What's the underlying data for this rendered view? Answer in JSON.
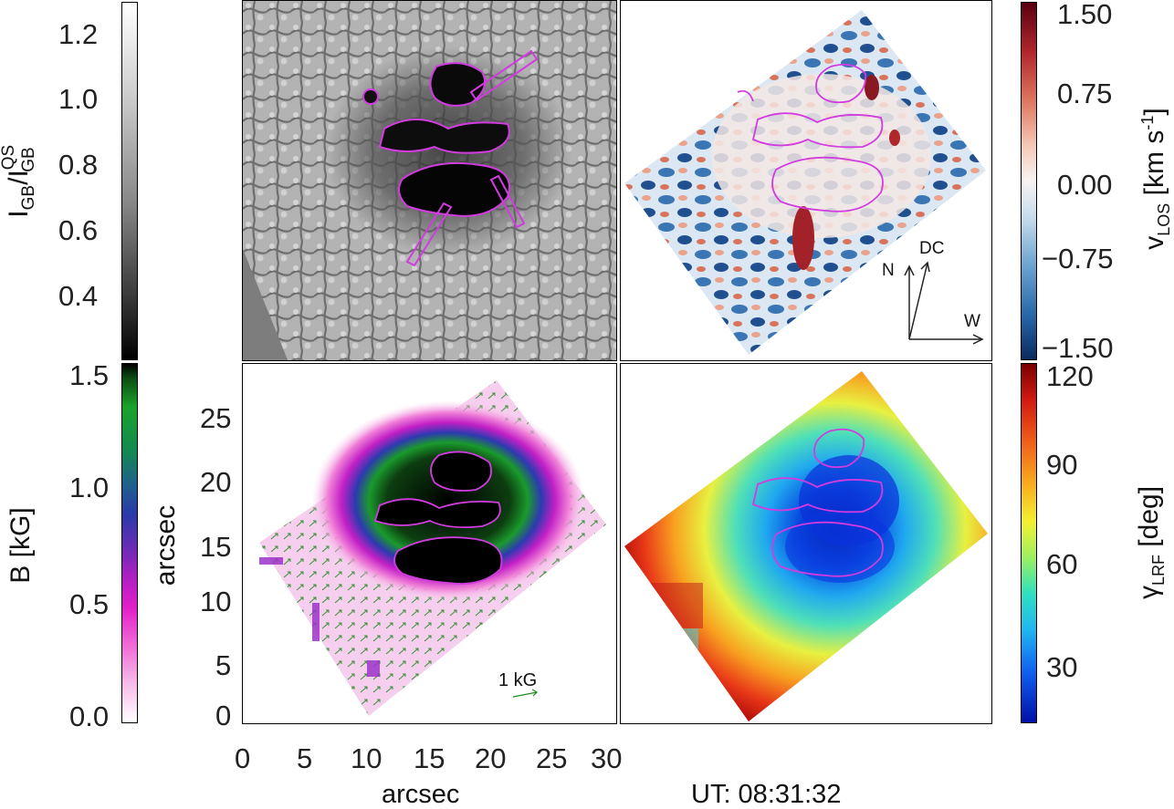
{
  "colorbars": {
    "intensity": {
      "label_main": "I",
      "label_sub": "GB",
      "label_sep": "/I",
      "label_sup": "QS",
      "label_sub2": "GB",
      "ticks": [
        "1.2",
        "1.0",
        "0.8",
        "0.6",
        "0.4"
      ],
      "range": [
        0.25,
        1.3
      ]
    },
    "field": {
      "label": "B [kG]",
      "ticks": [
        "1.5",
        "1.0",
        "0.5",
        "0.0"
      ],
      "range": [
        0.0,
        1.5
      ]
    },
    "velocity": {
      "label_main": "v",
      "label_sub": "LOS",
      "label_unit": "[km s",
      "label_unit_sup": "-1",
      "label_close": "]",
      "ticks": [
        "1.50",
        "0.75",
        "0.00",
        "−0.75",
        "−1.50"
      ],
      "range": [
        -1.5,
        1.5
      ]
    },
    "inclination": {
      "label_main": "γ",
      "label_sub": "LRF",
      "label_unit": "[deg]",
      "ticks": [
        "120",
        "90",
        "60",
        "30"
      ],
      "range": [
        10,
        130
      ]
    }
  },
  "axes": {
    "y_label": "arcsec",
    "x_label": "arcsec",
    "x_ticks": [
      "0",
      "5",
      "10",
      "15",
      "20",
      "25",
      "30"
    ],
    "y_ticks": [
      "25",
      "20",
      "15",
      "10",
      "5",
      "0"
    ]
  },
  "annotations": {
    "scale_vector": "1  kG",
    "compass_north": "N",
    "compass_dc": "DC",
    "compass_west": "W",
    "timestamp": "UT: 08:31:32"
  },
  "colors": {
    "contour": "#d23be0",
    "arrows": "#1f8a1f",
    "frame": "#000000"
  }
}
